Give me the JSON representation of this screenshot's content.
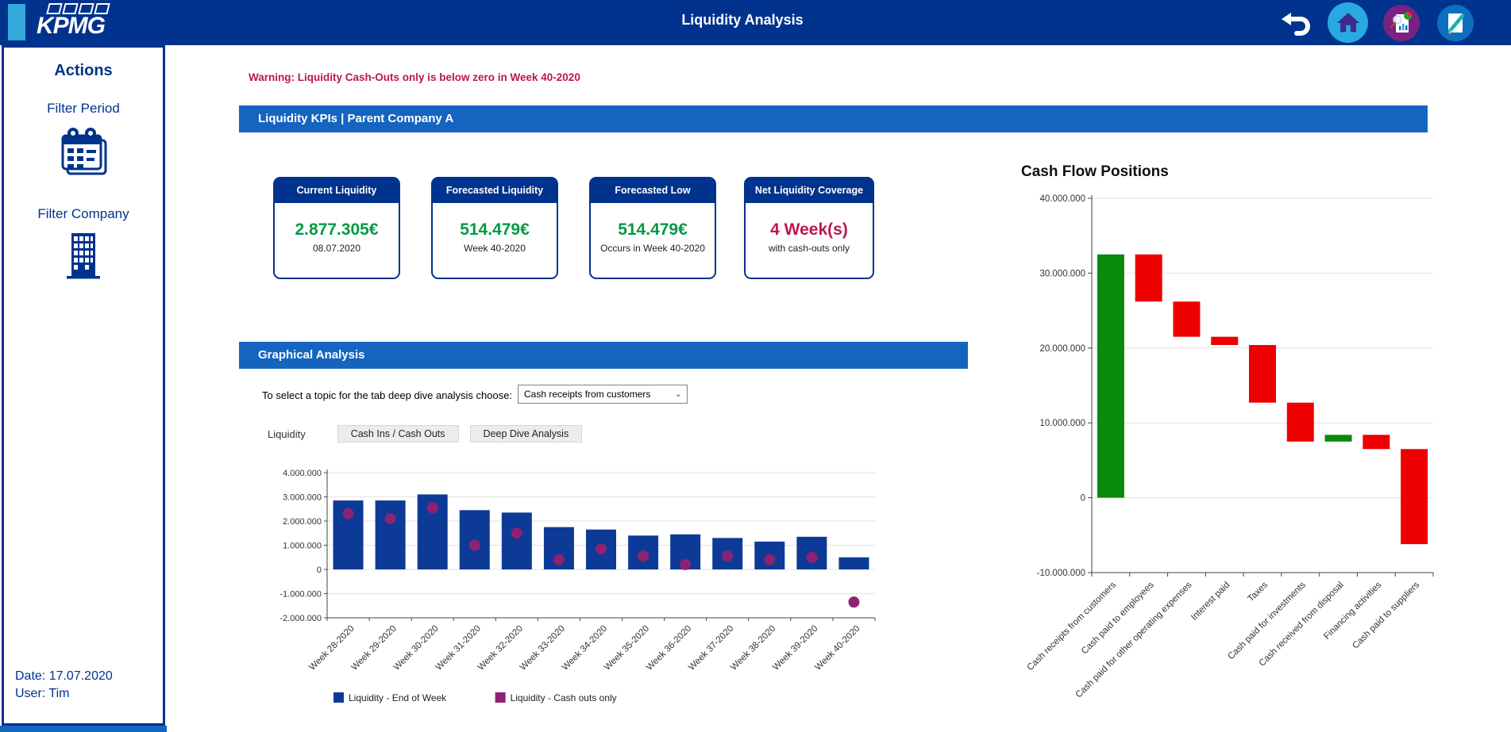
{
  "colors": {
    "navy": "#00338D",
    "section_blue": "#1565c0",
    "accent_cyan": "#35a8dc",
    "green": "#009a44",
    "crimson": "#be1748"
  },
  "header": {
    "logo_text": "KPMG",
    "title": "Liquidity Analysis",
    "icons": [
      "undo-icon",
      "home-icon",
      "report-analysis-icon",
      "edit-icon"
    ]
  },
  "sidebar": {
    "heading": "Actions",
    "items": [
      {
        "label": "Filter Period",
        "icon": "calendar-icon"
      },
      {
        "label": "Filter Company",
        "icon": "building-icon"
      }
    ],
    "date": "Date: 17.07.2020",
    "user": "User: Tim"
  },
  "main": {
    "warning": "Warning: Liquidity Cash-Outs only is below zero in Week 40-2020",
    "kpi_section_title": "Liquidity KPIs | Parent Company A",
    "kpis": [
      {
        "title": "Current Liquidity",
        "value": "2.877.305€",
        "subtitle": "08.07.2020",
        "value_color": "#009a44"
      },
      {
        "title": "Forecasted Liquidity",
        "value": "514.479€",
        "subtitle": "Week 40-2020",
        "value_color": "#009a44"
      },
      {
        "title": "Forecasted Low",
        "value": "514.479€",
        "subtitle": "Occurs in Week 40-2020",
        "value_color": "#009a44"
      },
      {
        "title": "Net Liquidity Coverage",
        "value": "4 Week(s)",
        "subtitle": "with cash-outs only",
        "value_color": "#be1748"
      }
    ],
    "graph_section_title": "Graphical Analysis",
    "topic_label": "To select a topic for the tab deep dive analysis choose:",
    "topic_value": "Cash receipts from customers",
    "tabs": [
      "Liquidity",
      "Cash Ins / Cash Outs",
      "Deep Dive Analysis"
    ]
  },
  "chart_data": [
    {
      "type": "bar",
      "title": "Liquidity",
      "categories": [
        "Week 28-2020",
        "Week 29-2020",
        "Week 30-2020",
        "Week 31-2020",
        "Week 32-2020",
        "Week 33-2020",
        "Week 34-2020",
        "Week 35-2020",
        "Week 36-2020",
        "Week 37-2020",
        "Week 38-2020",
        "Week 39-2020",
        "Week 40-2020"
      ],
      "series": [
        {
          "name": "Liquidity - End of Week",
          "type": "bar",
          "color": "#0d3a97",
          "values": [
            2850000,
            2850000,
            3100000,
            2450000,
            2350000,
            1750000,
            1650000,
            1400000,
            1450000,
            1300000,
            1150000,
            1350000,
            500000
          ]
        },
        {
          "name": "Liquidity - Cash outs only",
          "type": "scatter",
          "color": "#8d2273",
          "values": [
            2300000,
            2100000,
            2550000,
            1000000,
            1500000,
            400000,
            850000,
            550000,
            200000,
            550000,
            400000,
            500000,
            -1350000
          ]
        }
      ],
      "ylim": [
        -2000000,
        4000000
      ],
      "ytick_step": 1000000,
      "grid": true,
      "legend_position": "bottom"
    },
    {
      "type": "waterfall",
      "title": "Cash Flow Positions",
      "categories": [
        "Cash receipts from customers",
        "Cash paid to employees",
        "Cash paid for other operating expenses",
        "Interest paid",
        "Taxes",
        "Cash paid for investments",
        "Cash received from disposal",
        "Financing activities",
        "Cash paid to suppliers"
      ],
      "values": [
        32500000,
        -6300000,
        -4700000,
        -1100000,
        -7700000,
        -5200000,
        900000,
        -1900000,
        -12700000
      ],
      "colors": {
        "positive": "#0a8a0a",
        "negative": "#ee0000"
      },
      "ylim": [
        -10000000,
        40000000
      ],
      "ytick_step": 10000000,
      "grid": true,
      "legend_position": "none"
    }
  ]
}
